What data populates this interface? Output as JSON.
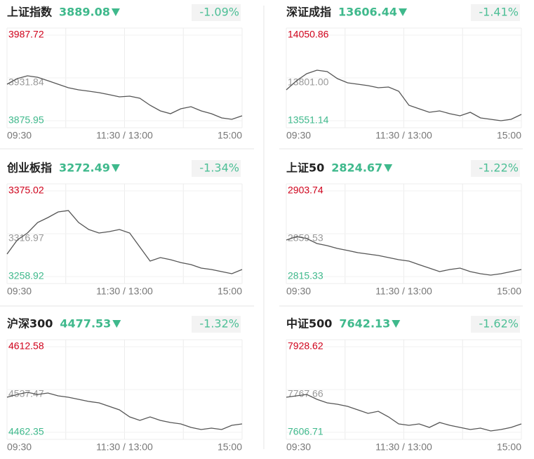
{
  "chart_data": [
    {
      "type": "line",
      "title": "上证指数",
      "price": "3889.08",
      "change": "-1.09%",
      "color": "#555555",
      "x_labels": [
        "09:30",
        "11:30 / 13:00",
        "15:00"
      ],
      "ylim": [
        3875.95,
        3987.72
      ],
      "yticks": [
        3987.72,
        3931.84,
        3875.95
      ],
      "values": [
        3923.6,
        3930.9,
        3934.6,
        3932.7,
        3928.2,
        3923.6,
        3919.0,
        3916.3,
        3914.5,
        3912.6,
        3909.9,
        3907.1,
        3908.0,
        3905.3,
        3896.1,
        3888.8,
        3885.1,
        3891.5,
        3894.3,
        3888.8,
        3885.1,
        3879.6,
        3877.8,
        3882.4
      ]
    },
    {
      "type": "line",
      "title": "深证成指",
      "price": "13606.44",
      "change": "-1.41%",
      "color": "#555555",
      "x_labels": [
        "09:30",
        "11:30 / 13:00",
        "15:00"
      ],
      "ylim": [
        13551.14,
        14050.86
      ],
      "yticks": [
        14050.86,
        {
          "value": 13801,
          "label": "13801.00"
        },
        13551.14
      ],
      "values": [
        13731.4,
        13784.6,
        13825.6,
        13846.1,
        13837.9,
        13796.9,
        13772.3,
        13764.1,
        13755.9,
        13743.7,
        13747.8,
        13723.2,
        13641.3,
        13620.8,
        13600.3,
        13608.5,
        13592.1,
        13579.8,
        13600.3,
        13567.6,
        13559.4,
        13551.2,
        13559.4,
        13588.0
      ]
    },
    {
      "type": "line",
      "title": "创业板指",
      "price": "3272.49",
      "change": "-1.34%",
      "color": "#555555",
      "x_labels": [
        "09:30",
        "11:30 / 13:00",
        "15:00"
      ],
      "ylim": [
        3258.92,
        3375.02
      ],
      "yticks": [
        3375.02,
        3316.97,
        3258.92
      ],
      "values": [
        3289.4,
        3308.4,
        3317.9,
        3332.2,
        3338.9,
        3346.5,
        3348.4,
        3332.2,
        3322.7,
        3317.9,
        3319.8,
        3322.7,
        3317.9,
        3298.9,
        3279.9,
        3284.6,
        3281.8,
        3277.9,
        3275.1,
        3270.3,
        3268.4,
        3265.6,
        3262.7,
        3268.4
      ]
    },
    {
      "type": "line",
      "title": "上证50",
      "price": "2824.67",
      "change": "-1.22%",
      "color": "#555555",
      "x_labels": [
        "09:30",
        "11:30 / 13:00",
        "15:00"
      ],
      "ylim": [
        2815.33,
        2903.74
      ],
      "yticks": [
        2903.74,
        2859.53,
        2815.33
      ],
      "values": [
        2853.0,
        2856.6,
        2854.5,
        2849.4,
        2847.2,
        2844.3,
        2842.2,
        2840.0,
        2838.5,
        2837.1,
        2834.9,
        2832.7,
        2831.3,
        2827.6,
        2824.0,
        2820.4,
        2822.6,
        2824.0,
        2820.4,
        2818.2,
        2816.8,
        2818.2,
        2820.4,
        2822.6
      ]
    },
    {
      "type": "line",
      "title": "沪深300",
      "price": "4477.53",
      "change": "-1.32%",
      "color": "#555555",
      "x_labels": [
        "09:30",
        "11:30 / 13:00",
        "15:00"
      ],
      "ylim": [
        4462.35,
        4612.58
      ],
      "yticks": [
        4612.58,
        4537.47,
        4462.35
      ],
      "values": [
        4523.9,
        4528.9,
        4532.5,
        4528.9,
        4531.3,
        4526.4,
        4523.9,
        4520.2,
        4516.5,
        4514.1,
        4507.9,
        4501.7,
        4489.4,
        4483.3,
        4489.4,
        4483.3,
        4479.6,
        4477.1,
        4471.0,
        4467.3,
        4469.7,
        4467.3,
        4474.7,
        4477.1
      ]
    },
    {
      "type": "line",
      "title": "中证500",
      "price": "7642.13",
      "change": "-1.62%",
      "color": "#555555",
      "x_labels": [
        "09:30",
        "11:30 / 13:00",
        "15:00"
      ],
      "ylim": [
        7606.71,
        7928.62
      ],
      "yticks": [
        7928.62,
        7767.66,
        7606.71
      ],
      "values": [
        7738.6,
        7743.9,
        7749.2,
        7730.7,
        7717.5,
        7712.3,
        7704.3,
        7691.1,
        7677.9,
        7685.9,
        7664.8,
        7638.4,
        7633.1,
        7638.4,
        7625.2,
        7643.6,
        7633.1,
        7625.2,
        7617.3,
        7622.5,
        7612.0,
        7617.3,
        7625.2,
        7638.4
      ]
    }
  ]
}
